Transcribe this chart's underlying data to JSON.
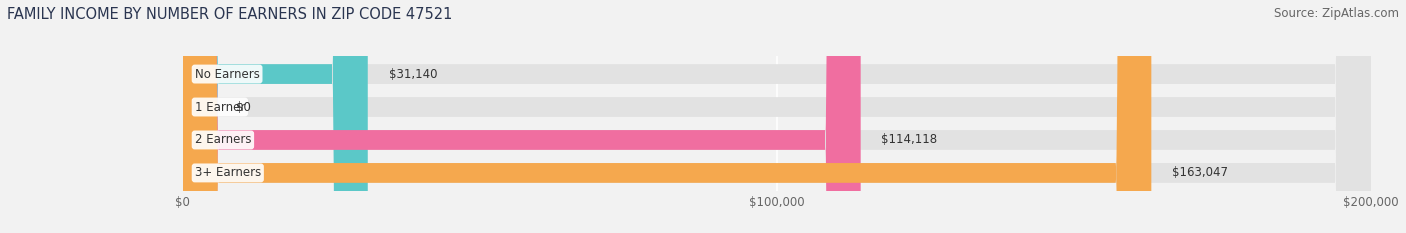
{
  "title": "FAMILY INCOME BY NUMBER OF EARNERS IN ZIP CODE 47521",
  "source": "Source: ZipAtlas.com",
  "categories": [
    "No Earners",
    "1 Earner",
    "2 Earners",
    "3+ Earners"
  ],
  "values": [
    31140,
    0,
    114118,
    163047
  ],
  "bar_colors": [
    "#5BC8C8",
    "#B0AADD",
    "#F06EA0",
    "#F5A84E"
  ],
  "bar_labels": [
    "$31,140",
    "$0",
    "$114,118",
    "$163,047"
  ],
  "xlim": [
    0,
    200000
  ],
  "xticks": [
    0,
    100000,
    200000
  ],
  "xtick_labels": [
    "$0",
    "$100,000",
    "$200,000"
  ],
  "background_color": "#f2f2f2",
  "bar_bg_color": "#e2e2e2",
  "title_fontsize": 10.5,
  "source_fontsize": 8.5,
  "label_fontsize": 8.5,
  "tick_fontsize": 8.5
}
